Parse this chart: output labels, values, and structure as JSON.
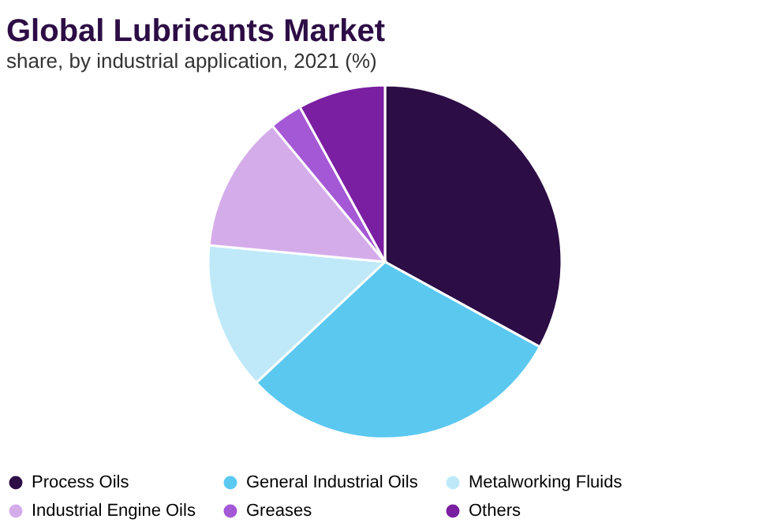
{
  "chart_data": {
    "type": "pie",
    "title": "Global Lubricants Market",
    "subtitle": "share, by industrial application, 2021 (%)",
    "categories": [
      "Process Oils",
      "General Industrial Oils",
      "Metalworking Fluids",
      "Industrial Engine Oils",
      "Greases",
      "Others"
    ],
    "values": [
      33,
      30,
      13.5,
      12.5,
      3,
      8
    ],
    "colors": [
      "#2d0d45",
      "#5bc8f0",
      "#bfe9f8",
      "#d5acea",
      "#a558d6",
      "#7a1fa2"
    ],
    "legend": "bottom"
  }
}
